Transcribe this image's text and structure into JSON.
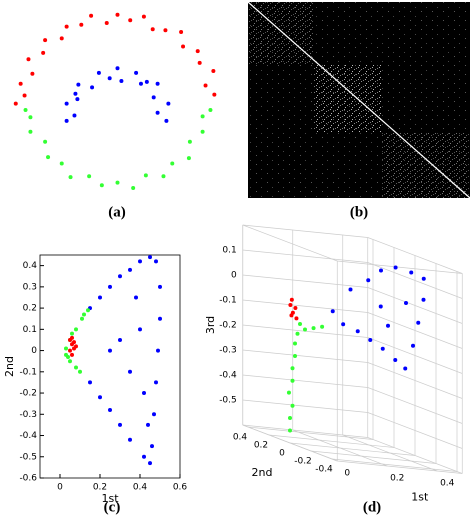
{
  "chart_data": [
    {
      "type": "scatter",
      "label": "(a)",
      "xlim": [
        -1.15,
        1.15
      ],
      "ylim": [
        -1,
        1.15
      ],
      "series": [
        {
          "color": "#ff0000",
          "x": [
            0.99,
            0.9,
            0.98,
            0.84,
            0.82,
            0.67,
            0.65,
            0.49,
            0.36,
            0.27,
            0.13,
            0.0,
            -0.11,
            -0.27,
            -0.37,
            -0.52,
            -0.57,
            -0.74,
            -0.76,
            -0.91,
            -0.87,
            -0.99,
            -0.95,
            -1.04
          ],
          "values": [
            0.14,
            0.24,
            0.4,
            0.49,
            0.62,
            0.67,
            0.83,
            0.85,
            0.86,
            1.0,
            0.96,
            1.02,
            0.93,
            1.01,
            0.91,
            0.89,
            0.76,
            0.74,
            0.6,
            0.53,
            0.37,
            0.26,
            0.13,
            0.04
          ]
        },
        {
          "color": "#0000ff",
          "x": [
            0.5,
            0.41,
            0.52,
            0.37,
            0.41,
            0.24,
            0.19,
            0.04,
            0.0,
            -0.08,
            -0.19,
            -0.26,
            -0.4,
            -0.41,
            -0.52,
            -0.44,
            -0.52,
            0.3,
            -0.43
          ],
          "values": [
            -0.15,
            -0.06,
            0.04,
            0.11,
            0.26,
            0.26,
            0.38,
            0.29,
            0.43,
            0.32,
            0.38,
            0.22,
            0.25,
            0.09,
            0.04,
            -0.09,
            -0.15,
            0.28,
            0.15
          ]
        },
        {
          "color": "#33ff33",
          "x": [
            -0.89,
            -0.89,
            -0.74,
            -0.71,
            -0.57,
            -0.48,
            -0.29,
            -0.16,
            0.0,
            0.16,
            0.29,
            0.47,
            0.56,
            0.73,
            0.74,
            0.87,
            0.87,
            0.95,
            -0.94
          ],
          "values": [
            -0.11,
            -0.27,
            -0.38,
            -0.55,
            -0.62,
            -0.77,
            -0.76,
            -0.86,
            -0.83,
            -0.89,
            -0.75,
            -0.76,
            -0.62,
            -0.56,
            -0.38,
            -0.27,
            -0.1,
            -0.03,
            -0.03
          ]
        }
      ]
    },
    {
      "type": "image",
      "label": "(b)"
    },
    {
      "type": "scatter",
      "label": "(c)",
      "xlabel": "1st",
      "ylabel": "2nd",
      "xlim": [
        -0.1,
        0.6
      ],
      "ylim": [
        -0.6,
        0.45
      ],
      "xticks": [
        0,
        0.2,
        0.4,
        0.6
      ],
      "yticks": [
        -0.6,
        -0.5,
        -0.4,
        -0.3,
        -0.2,
        -0.1,
        0,
        0.1,
        0.2,
        0.3,
        0.4
      ],
      "series": [
        {
          "color": "#0000ff",
          "x": [
            0.15,
            0.2,
            0.25,
            0.3,
            0.35,
            0.4,
            0.45,
            0.48,
            0.5,
            0.5,
            0.49,
            0.48,
            0.47,
            0.46,
            0.45,
            0.42,
            0.35,
            0.3,
            0.25,
            0.2,
            0.15,
            0.4,
            0.35,
            0.3,
            0.42,
            0.38,
            0.44,
            0.25
          ],
          "values": [
            0.2,
            0.25,
            0.3,
            0.35,
            0.38,
            0.42,
            0.44,
            0.42,
            0.3,
            0.15,
            0,
            -0.15,
            -0.3,
            -0.45,
            -0.53,
            -0.5,
            -0.42,
            -0.35,
            -0.28,
            -0.22,
            -0.15,
            0.1,
            -0.1,
            0.05,
            -0.2,
            0.25,
            -0.35,
            0
          ]
        },
        {
          "color": "#33ff33",
          "x": [
            0.14,
            0.11,
            0.08,
            0.05,
            0.03,
            0.03,
            0.05,
            0.08,
            0.1,
            0.06,
            0.04,
            0.12
          ],
          "values": [
            0.19,
            0.15,
            0.1,
            0.05,
            0.01,
            -0.02,
            -0.05,
            -0.08,
            -0.1,
            0.08,
            -0.03,
            0.17
          ]
        },
        {
          "color": "#ff0000",
          "x": [
            0.05,
            0.06,
            0.07,
            0.05,
            0.06,
            0.07,
            0.08,
            0.06
          ],
          "values": [
            0.05,
            0.03,
            0.01,
            0,
            -0.02,
            0.04,
            0.02,
            0.06
          ]
        }
      ]
    },
    {
      "type": "scatter3d",
      "label": "(d)",
      "xlabel": "1st",
      "ylabel": "2nd",
      "zlabel": "3rd",
      "xlim": [
        0,
        0.5
      ],
      "ylim": [
        -0.45,
        0.45
      ],
      "zlim": [
        -0.6,
        0.2
      ],
      "xticks": [
        0,
        0.2,
        0.4
      ],
      "yticks": [
        -0.4,
        -0.2,
        0,
        0.2,
        0.4
      ],
      "zticks": [
        -0.5,
        -0.4,
        -0.3,
        -0.2,
        -0.1,
        0,
        0.1
      ],
      "series": [
        {
          "color": "#0000ff",
          "x": [
            0.15,
            0.2,
            0.25,
            0.28,
            0.33,
            0.38,
            0.43,
            0.45,
            0.45,
            0.45,
            0.44,
            0.4,
            0.35,
            0.3,
            0.25,
            0.2,
            0.3,
            0.38,
            0.35
          ],
          "y": [
            -0.05,
            -0.1,
            -0.15,
            -0.2,
            -0.22,
            -0.25,
            -0.25,
            -0.2,
            -0.15,
            -0.1,
            -0.05,
            -0.05,
            -0.05,
            -0.05,
            -0.05,
            -0.03,
            -0.15,
            -0.2,
            -0.1
          ],
          "values": [
            -0.05,
            0.05,
            0.1,
            0.15,
            0.17,
            0.16,
            0.14,
            0.05,
            -0.05,
            -0.15,
            -0.25,
            -0.22,
            -0.18,
            -0.15,
            -0.12,
            -0.1,
            0.0,
            0.03,
            -0.08
          ]
        },
        {
          "color": "#33ff33",
          "x": [
            0,
            0,
            0.01,
            0,
            0.01,
            0.01,
            0.02,
            0.02,
            0.03,
            0.06,
            0.09,
            0.12,
            0.04
          ],
          "y": [
            0,
            0,
            0,
            0.01,
            0,
            0,
            0,
            0,
            0,
            0,
            -0.01,
            -0.02,
            0
          ],
          "values": [
            -0.55,
            -0.5,
            -0.45,
            -0.4,
            -0.35,
            -0.3,
            -0.25,
            -0.2,
            -0.16,
            -0.14,
            -0.13,
            -0.12,
            -0.12
          ]
        },
        {
          "color": "#ff0000",
          "x": [
            0.01,
            0.02,
            0.03,
            0.02,
            0.03,
            0.01
          ],
          "y": [
            0.02,
            0.02,
            0.01,
            0.03,
            0.02,
            0.01
          ],
          "values": [
            -0.05,
            -0.08,
            -0.1,
            -0.03,
            -0.06,
            -0.09
          ]
        }
      ]
    }
  ]
}
